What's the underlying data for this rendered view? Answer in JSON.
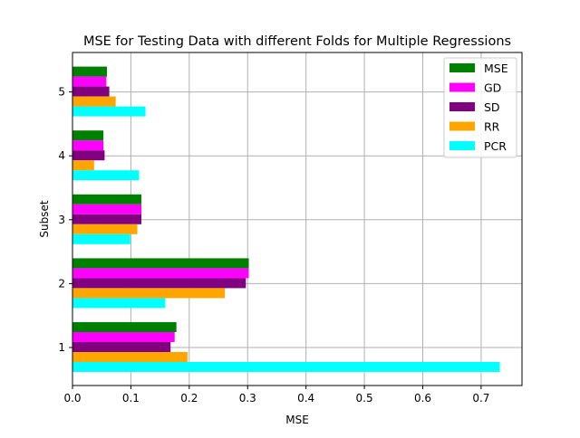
{
  "chart_data": {
    "type": "bar",
    "orientation": "horizontal",
    "title": "MSE for Testing Data with different Folds for Multiple Regressions",
    "xlabel": "MSE",
    "ylabel": "Subset",
    "xlim": [
      0,
      0.77
    ],
    "xticks": [
      "0.0",
      "0.1",
      "0.2",
      "0.3",
      "0.4",
      "0.5",
      "0.6",
      "0.7"
    ],
    "grid": true,
    "legend_position": "top-right",
    "categories": [
      "1",
      "2",
      "3",
      "4",
      "5"
    ],
    "series": [
      {
        "name": "MSE",
        "color": "#008000",
        "values": [
          0.178,
          0.302,
          0.118,
          0.053,
          0.059
        ]
      },
      {
        "name": "GD",
        "color": "#ff00ff",
        "values": [
          0.175,
          0.302,
          0.118,
          0.053,
          0.058
        ]
      },
      {
        "name": "SD",
        "color": "#800080",
        "values": [
          0.168,
          0.297,
          0.118,
          0.055,
          0.063
        ]
      },
      {
        "name": "RR",
        "color": "#ffa500",
        "values": [
          0.197,
          0.261,
          0.111,
          0.037,
          0.074
        ]
      },
      {
        "name": "PCR",
        "color": "#00ffff",
        "values": [
          0.732,
          0.159,
          0.099,
          0.114,
          0.125
        ]
      }
    ]
  }
}
